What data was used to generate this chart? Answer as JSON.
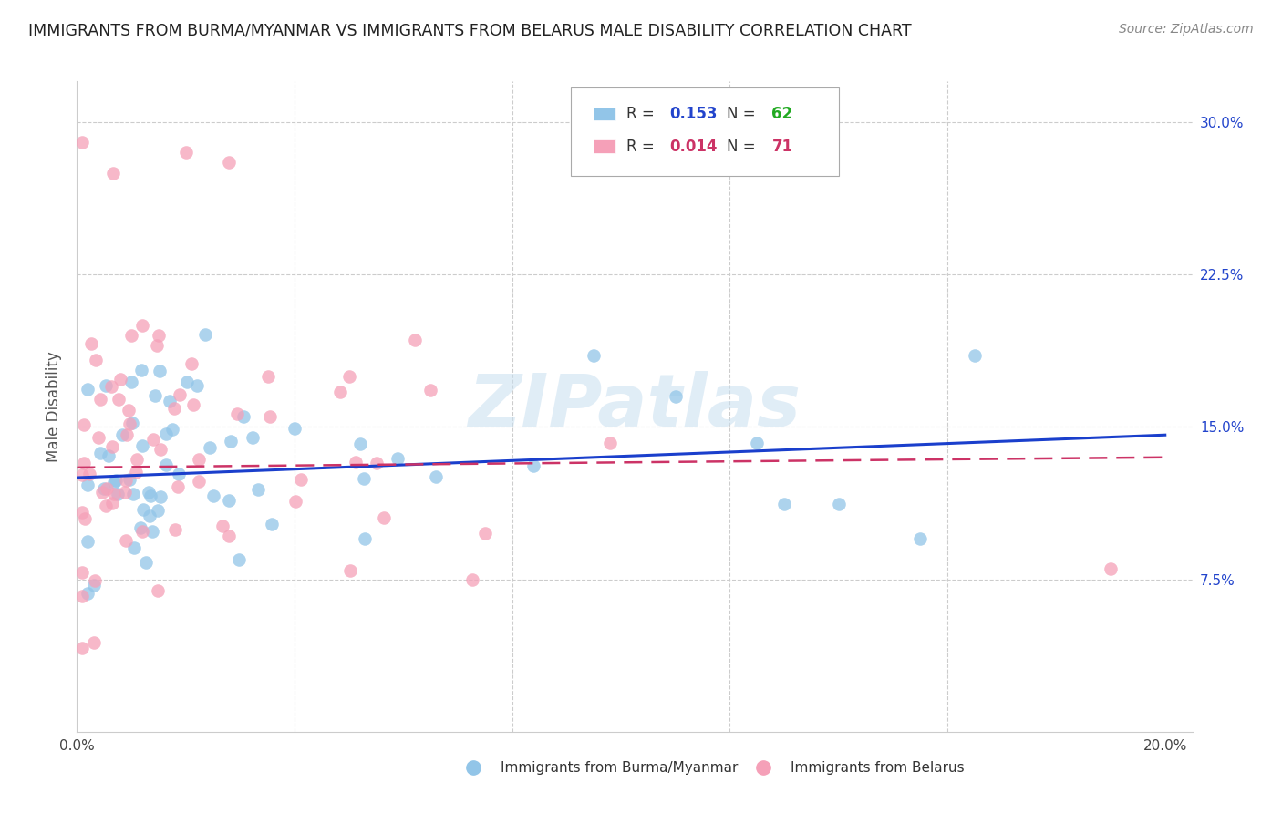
{
  "title": "IMMIGRANTS FROM BURMA/MYANMAR VS IMMIGRANTS FROM BELARUS MALE DISABILITY CORRELATION CHART",
  "source": "Source: ZipAtlas.com",
  "ylabel": "Male Disability",
  "xlim": [
    0.0,
    0.2
  ],
  "ylim": [
    0.0,
    0.32
  ],
  "legend_R1": "0.153",
  "legend_N1": "62",
  "legend_R2": "0.014",
  "legend_N2": "71",
  "color_blue": "#92C5E8",
  "color_pink": "#F5A0B8",
  "line_blue": "#1A3FCC",
  "line_pink": "#CC3366",
  "label1": "Immigrants from Burma/Myanmar",
  "label2": "Immigrants from Belarus",
  "watermark": "ZIPatlas",
  "blue_line_start": 0.125,
  "blue_line_end": 0.146,
  "pink_line_start": 0.13,
  "pink_line_end": 0.135
}
